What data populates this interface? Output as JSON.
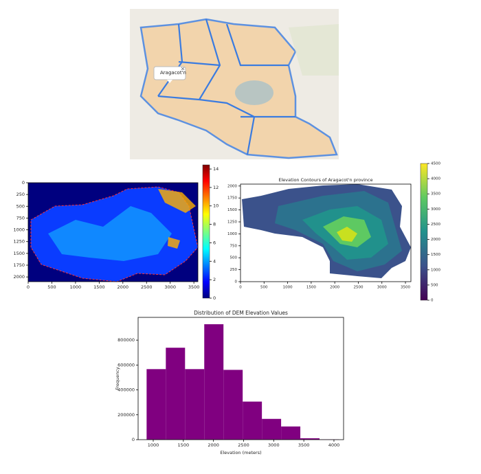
{
  "map": {
    "popup": "Aragacot'n"
  },
  "chart_data": [
    {
      "type": "heatmap",
      "xlim": [
        0,
        3585
      ],
      "ylim": [
        2100,
        0
      ],
      "xticks": [
        0,
        500,
        1000,
        1500,
        2000,
        2500,
        3000,
        3500
      ],
      "yticks": [
        0,
        250,
        500,
        750,
        1000,
        1250,
        1500,
        1750,
        2000
      ],
      "clim": [
        0,
        14.45
      ],
      "cticks": [
        0,
        2,
        4,
        6,
        8,
        10,
        12,
        14
      ],
      "colormap": "jet"
    },
    {
      "type": "contour",
      "title": "Elevation Contours of Aragacot'n province",
      "xlim": [
        0,
        3616
      ],
      "ylim": [
        0,
        2040
      ],
      "xticks": [
        0,
        500,
        1000,
        1500,
        2000,
        2500,
        3000,
        3500
      ],
      "yticks": [
        0,
        250,
        500,
        750,
        1000,
        1250,
        1500,
        1750,
        2000
      ],
      "clim": [
        0,
        4500
      ],
      "cticks": [
        0,
        500,
        1000,
        1500,
        2000,
        2500,
        3000,
        3500,
        4000,
        4500
      ],
      "colormap": "viridis"
    },
    {
      "type": "histogram",
      "title": "Distribution of DEM Elevation Values",
      "xlabel": "Elevation (meters)",
      "ylabel": "Frequency",
      "bins": [
        890,
        1209,
        1528,
        1847,
        2166,
        2485,
        2804,
        3123,
        3442,
        3761,
        4080
      ],
      "values": [
        567000,
        739000,
        567000,
        928000,
        561000,
        306000,
        167000,
        106000,
        11000,
        2000
      ],
      "color": "#800080",
      "xlim": [
        749,
        4160
      ],
      "ylim": [
        0,
        983000
      ],
      "xticks": [
        1000,
        1500,
        2000,
        2500,
        3000,
        3500,
        4000
      ],
      "yticks": [
        0,
        200000,
        400000,
        600000,
        800000
      ]
    }
  ]
}
